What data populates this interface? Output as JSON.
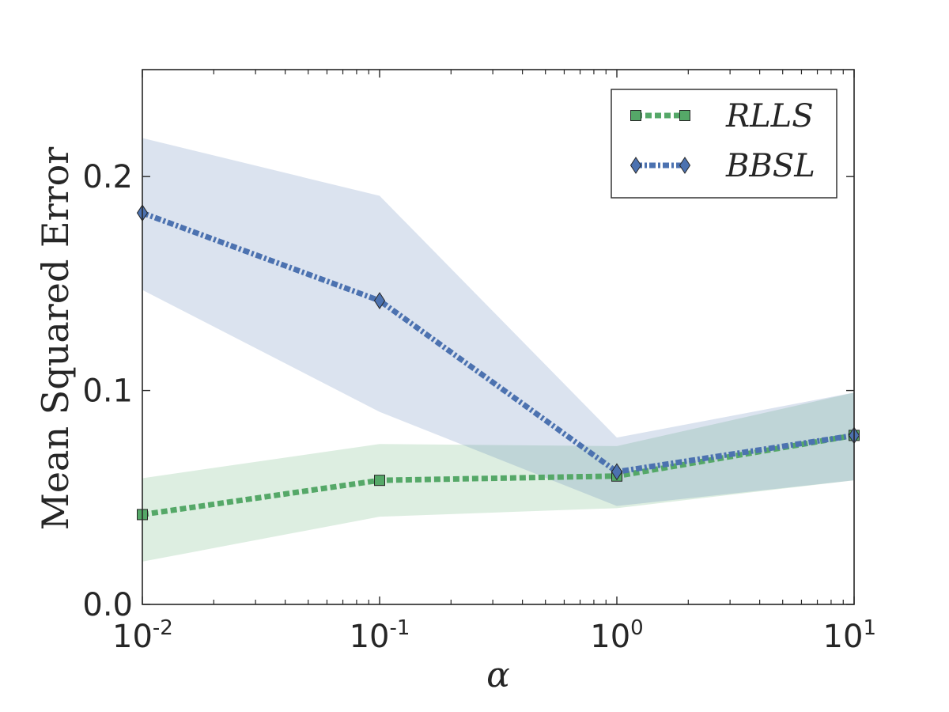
{
  "chart_data": {
    "type": "line",
    "xscale": "log",
    "x": [
      0.01,
      0.1,
      1,
      10
    ],
    "xlim": [
      0.01,
      10
    ],
    "ylim": [
      0,
      0.25
    ],
    "xlabel": "α",
    "ylabel": "Mean Squared Error",
    "x_ticks": [
      {
        "value": 0.01,
        "base": "10",
        "exp": "-2"
      },
      {
        "value": 0.1,
        "base": "10",
        "exp": "-1"
      },
      {
        "value": 1,
        "base": "10",
        "exp": "0"
      },
      {
        "value": 10,
        "base": "10",
        "exp": "1"
      }
    ],
    "y_ticks": [
      {
        "value": 0.0,
        "label": "0.0"
      },
      {
        "value": 0.1,
        "label": "0.1"
      },
      {
        "value": 0.2,
        "label": "0.2"
      }
    ],
    "legend_position": "top-right",
    "grid": false,
    "series": [
      {
        "name": "RLLS",
        "color": "#55a868",
        "marker": "square",
        "line_style": "dotted",
        "values": [
          0.042,
          0.058,
          0.06,
          0.079
        ],
        "lower": [
          0.02,
          0.041,
          0.045,
          0.058
        ],
        "upper": [
          0.059,
          0.075,
          0.074,
          0.099
        ]
      },
      {
        "name": "BBSL",
        "color": "#4c72b0",
        "marker": "diamond",
        "line_style": "dashdot",
        "values": [
          0.183,
          0.142,
          0.062,
          0.079
        ],
        "lower": [
          0.147,
          0.09,
          0.046,
          0.058
        ],
        "upper": [
          0.218,
          0.191,
          0.078,
          0.099
        ]
      }
    ]
  }
}
